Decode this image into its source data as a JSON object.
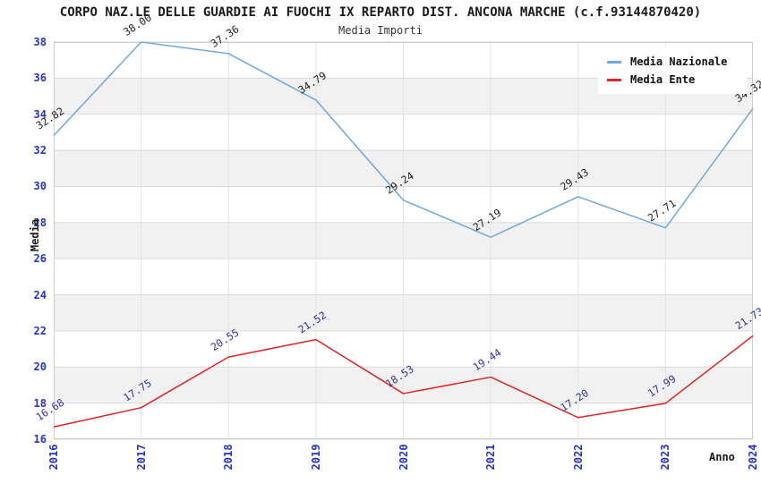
{
  "header": {
    "title": "CORPO NAZ.LE DELLE GUARDIE AI FUOCHI IX REPARTO DIST. ANCONA MARCHE (c.f.93144870420)",
    "subtitle": "Media Importi"
  },
  "axes": {
    "y_label": "Media",
    "x_label": "Anno"
  },
  "legend": {
    "position": "top-right",
    "items": [
      {
        "label": "Media Nazionale",
        "color": "#6fa8dc"
      },
      {
        "label": "Media Ente",
        "color": "#e62222"
      }
    ]
  },
  "colors": {
    "tick_label": "#2533cc",
    "band": "#f1f1f1",
    "hgrid": "#d9d9d9",
    "vgrid": "#e4e4e4",
    "plot_border": "#cccccc",
    "label_nazionale": "#222222",
    "label_ente": "#333399"
  },
  "chart_data": {
    "type": "line",
    "title": "Media Importi",
    "xlabel": "Anno",
    "ylabel": "Media",
    "x": [
      2016,
      2017,
      2018,
      2019,
      2020,
      2021,
      2022,
      2023,
      2024
    ],
    "series": [
      {
        "name": "Media Nazionale",
        "color": "#6fa8dc",
        "label_color": "#222222",
        "values": [
          32.82,
          38.0,
          37.36,
          34.79,
          29.24,
          27.19,
          29.43,
          27.71,
          34.32
        ]
      },
      {
        "name": "Media Ente",
        "color": "#e62222",
        "label_color": "#333399",
        "values": [
          16.68,
          17.75,
          20.55,
          21.52,
          18.53,
          19.44,
          17.2,
          17.99,
          21.73
        ]
      }
    ],
    "ylim": [
      16,
      38
    ],
    "ytick_step": 2,
    "grid": true,
    "alternating_bands": true,
    "data_labels": true,
    "legend_position": "top-right"
  }
}
